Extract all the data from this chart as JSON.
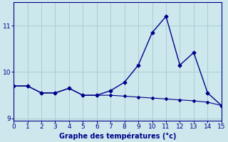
{
  "xlabel": "Graphe des températures (°c)",
  "background_color": "#cce8ec",
  "grid_color": "#aaccd4",
  "line_color": "#00008b",
  "line1_x": [
    0,
    1,
    2,
    3,
    4,
    5,
    6,
    7,
    8,
    9,
    10,
    11,
    12,
    13,
    14,
    15
  ],
  "line1_y": [
    9.7,
    9.7,
    9.55,
    9.55,
    9.65,
    9.5,
    9.5,
    9.6,
    9.78,
    10.15,
    10.85,
    11.2,
    10.15,
    10.42,
    9.55,
    9.28
  ],
  "line2_x": [
    0,
    1,
    2,
    3,
    4,
    5,
    6,
    7,
    8,
    9,
    10,
    11,
    12,
    13,
    14,
    15
  ],
  "line2_y": [
    9.7,
    9.7,
    9.55,
    9.55,
    9.65,
    9.5,
    9.5,
    9.5,
    9.48,
    9.46,
    9.44,
    9.42,
    9.4,
    9.38,
    9.35,
    9.28
  ],
  "xlim": [
    0,
    15
  ],
  "ylim": [
    8.95,
    11.5
  ],
  "yticks": [
    9,
    10,
    11
  ],
  "xticks": [
    0,
    1,
    2,
    3,
    4,
    5,
    6,
    7,
    8,
    9,
    10,
    11,
    12,
    13,
    14,
    15
  ]
}
